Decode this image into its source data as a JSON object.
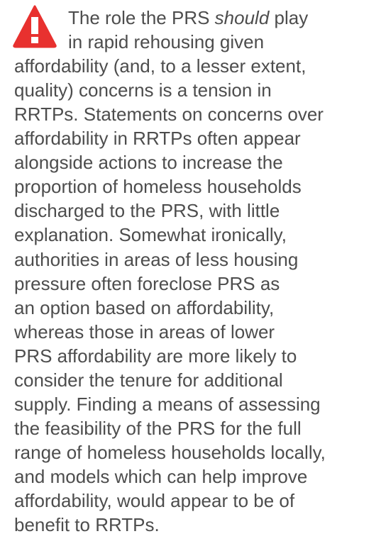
{
  "paragraph": {
    "lines": [
      {
        "before": "The role the PRS ",
        "emphasis": "should",
        "after": " play"
      },
      "in rapid rehousing given",
      "affordability (and, to a lesser extent,",
      "quality) concerns is a tension in",
      "RRTPs. Statements on concerns over",
      "affordability in RRTPs often appear",
      "alongside actions to increase the",
      "proportion of homeless households",
      "discharged to the PRS, with little",
      "explanation. Somewhat ironically,",
      "authorities in areas of less housing",
      "pressure often foreclose PRS as",
      "an option based on affordability,",
      "whereas those in areas of lower",
      "PRS affordability are more likely to",
      "consider the tenure for additional",
      "supply. Finding a means of assessing",
      "the feasibility of the PRS for the full",
      "range of homeless households locally,",
      "and models which can help improve",
      "affordability, would appear to be of",
      "benefit to RRTPs."
    ]
  }
}
